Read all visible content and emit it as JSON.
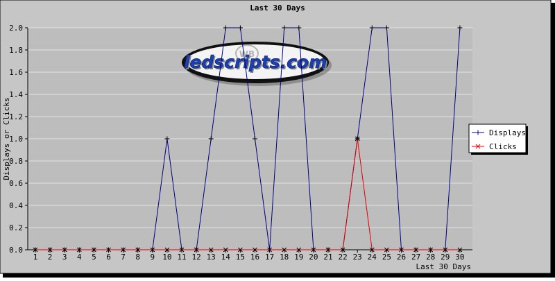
{
  "chart_data": {
    "type": "line",
    "title": "Last 30 Days",
    "xlabel": "Last 30 Days",
    "ylabel": "Displays or Clicks",
    "ylim": [
      0,
      2
    ],
    "yticks": [
      "0.0",
      "0.2",
      "0.4",
      "0.6",
      "0.8",
      "1.0",
      "1.2",
      "1.4",
      "1.6",
      "1.8",
      "2.0"
    ],
    "x": [
      1,
      2,
      3,
      4,
      5,
      6,
      7,
      8,
      9,
      10,
      11,
      12,
      13,
      14,
      15,
      16,
      17,
      18,
      19,
      20,
      21,
      22,
      23,
      24,
      25,
      26,
      27,
      28,
      29,
      30
    ],
    "grid": true,
    "legend_position": "right",
    "series": [
      {
        "name": "Displays",
        "color": "#000080",
        "marker": "plus",
        "values": [
          0,
          0,
          0,
          0,
          0,
          0,
          0,
          0,
          0,
          1,
          0,
          0,
          1,
          2,
          2,
          1,
          0,
          2,
          2,
          0,
          0,
          0,
          1,
          2,
          2,
          0,
          0,
          0,
          0,
          2
        ]
      },
      {
        "name": "Clicks",
        "color": "#e00000",
        "marker": "cross",
        "values": [
          0,
          0,
          0,
          0,
          0,
          0,
          0,
          0,
          0,
          0,
          0,
          0,
          0,
          0,
          0,
          0,
          0,
          0,
          0,
          0,
          0,
          0,
          1,
          0,
          0,
          0,
          0,
          0,
          0,
          0
        ]
      }
    ]
  },
  "watermark": {
    "text": "ledscripts.com",
    "badge_text": "WB"
  },
  "colors": {
    "outer_background": "#c6c6c6",
    "plot_background": "#bdbdbd",
    "grid": "#e2e2e2",
    "frame_shadow": "#000000",
    "legend_background": "#ffffff"
  }
}
